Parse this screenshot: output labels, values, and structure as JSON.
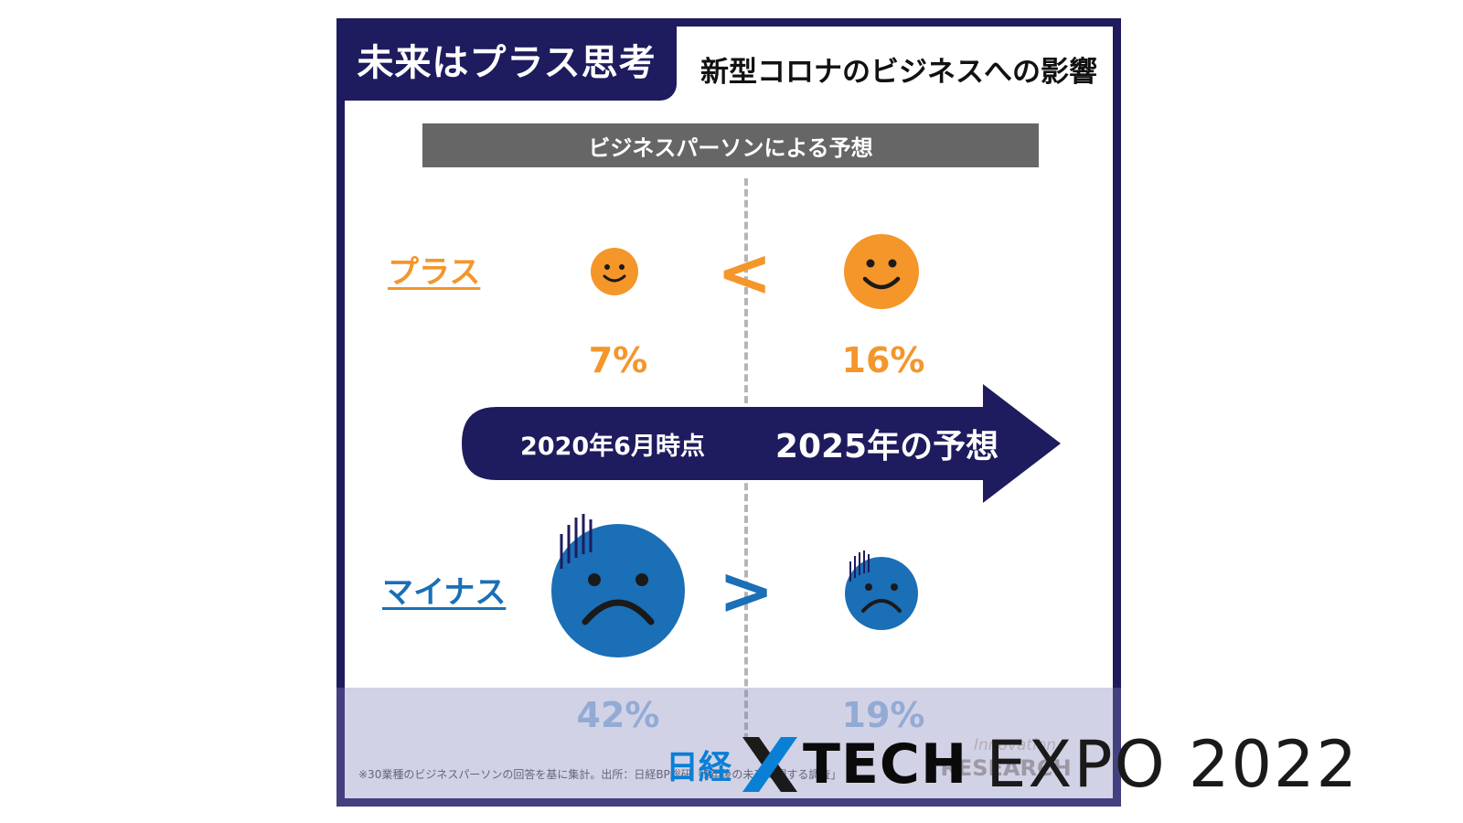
{
  "header": {
    "tab_title": "未来はプラス思考",
    "subtitle": "新型コロナのビジネスへの影響"
  },
  "subhead": "ビジネスパーソンによる予想",
  "rows": {
    "plus": {
      "label": "プラス",
      "comparison": "<",
      "value_2020": "7%",
      "value_2025": "16%",
      "face": "smiley-face-icon",
      "color": "#f4962a"
    },
    "minus": {
      "label": "マイナス",
      "comparison": ">",
      "value_2020": "42%",
      "value_2025": "19%",
      "face": "sad-face-icon",
      "color": "#1a6fb6"
    }
  },
  "arrow": {
    "left_label": "2020年6月時点",
    "right_label": "2025年の予想",
    "color": "#1e1c5e"
  },
  "footnote": "※30業種のビジネスパーソンの回答を基に集計。出所：日経BP総研「5年後の未来に関する調査」",
  "watermark": "Innovation RESEARCH",
  "expo": {
    "nikkei": "日経",
    "tech": "TECH",
    "year_text": "EXPO 2022",
    "accent_color": "#0a7fd6"
  }
}
